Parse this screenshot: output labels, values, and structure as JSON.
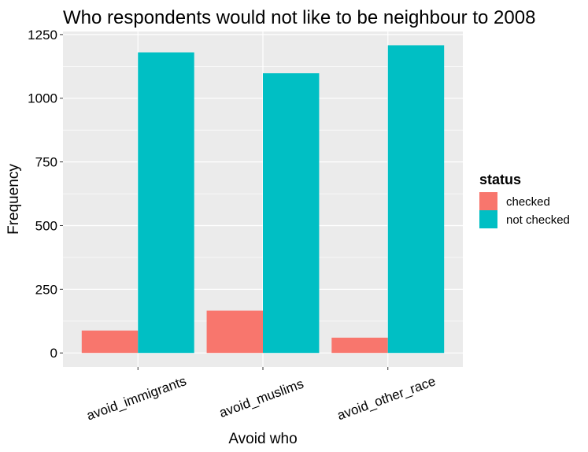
{
  "chart_data": {
    "type": "bar",
    "title": "Who respondents would not like to be neighbour to 2008",
    "xlabel": "Avoid who",
    "ylabel": "Frequency",
    "categories": [
      "avoid_immigrants",
      "avoid_muslims",
      "avoid_other_race"
    ],
    "series": [
      {
        "name": "checked",
        "values": [
          88,
          166,
          60
        ],
        "color": "#F8766D"
      },
      {
        "name": "not checked",
        "values": [
          1180,
          1098,
          1208
        ],
        "color": "#00BFC4"
      }
    ],
    "ylim": [
      -55,
      1262
    ],
    "yticks": [
      0,
      250,
      500,
      750,
      1000,
      1250
    ],
    "grid": true,
    "panel_background": "#EBEBEB",
    "legend": {
      "title": "status",
      "placement": "right"
    }
  }
}
